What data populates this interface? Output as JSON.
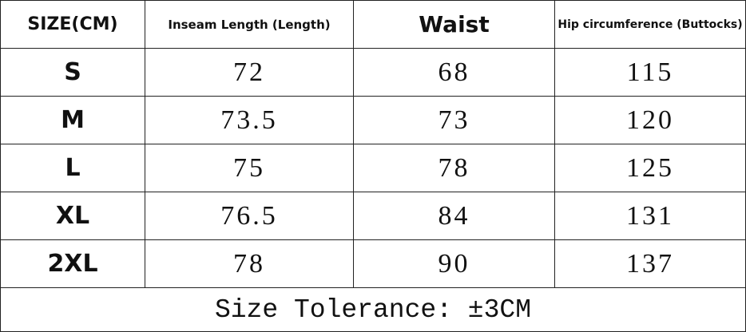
{
  "table": {
    "headers": [
      "SIZE(CM)",
      "Inseam Length (Length)",
      "Waist",
      "Hip circumference (Buttocks)"
    ],
    "rows": [
      [
        "S",
        "72",
        "68",
        "115"
      ],
      [
        "M",
        "73.5",
        "73",
        "120"
      ],
      [
        "L",
        "75",
        "78",
        "125"
      ],
      [
        "XL",
        "76.5",
        "84",
        "131"
      ],
      [
        "2XL",
        "78",
        "90",
        "137"
      ]
    ],
    "footer": "Size Tolerance: ±3CM"
  }
}
